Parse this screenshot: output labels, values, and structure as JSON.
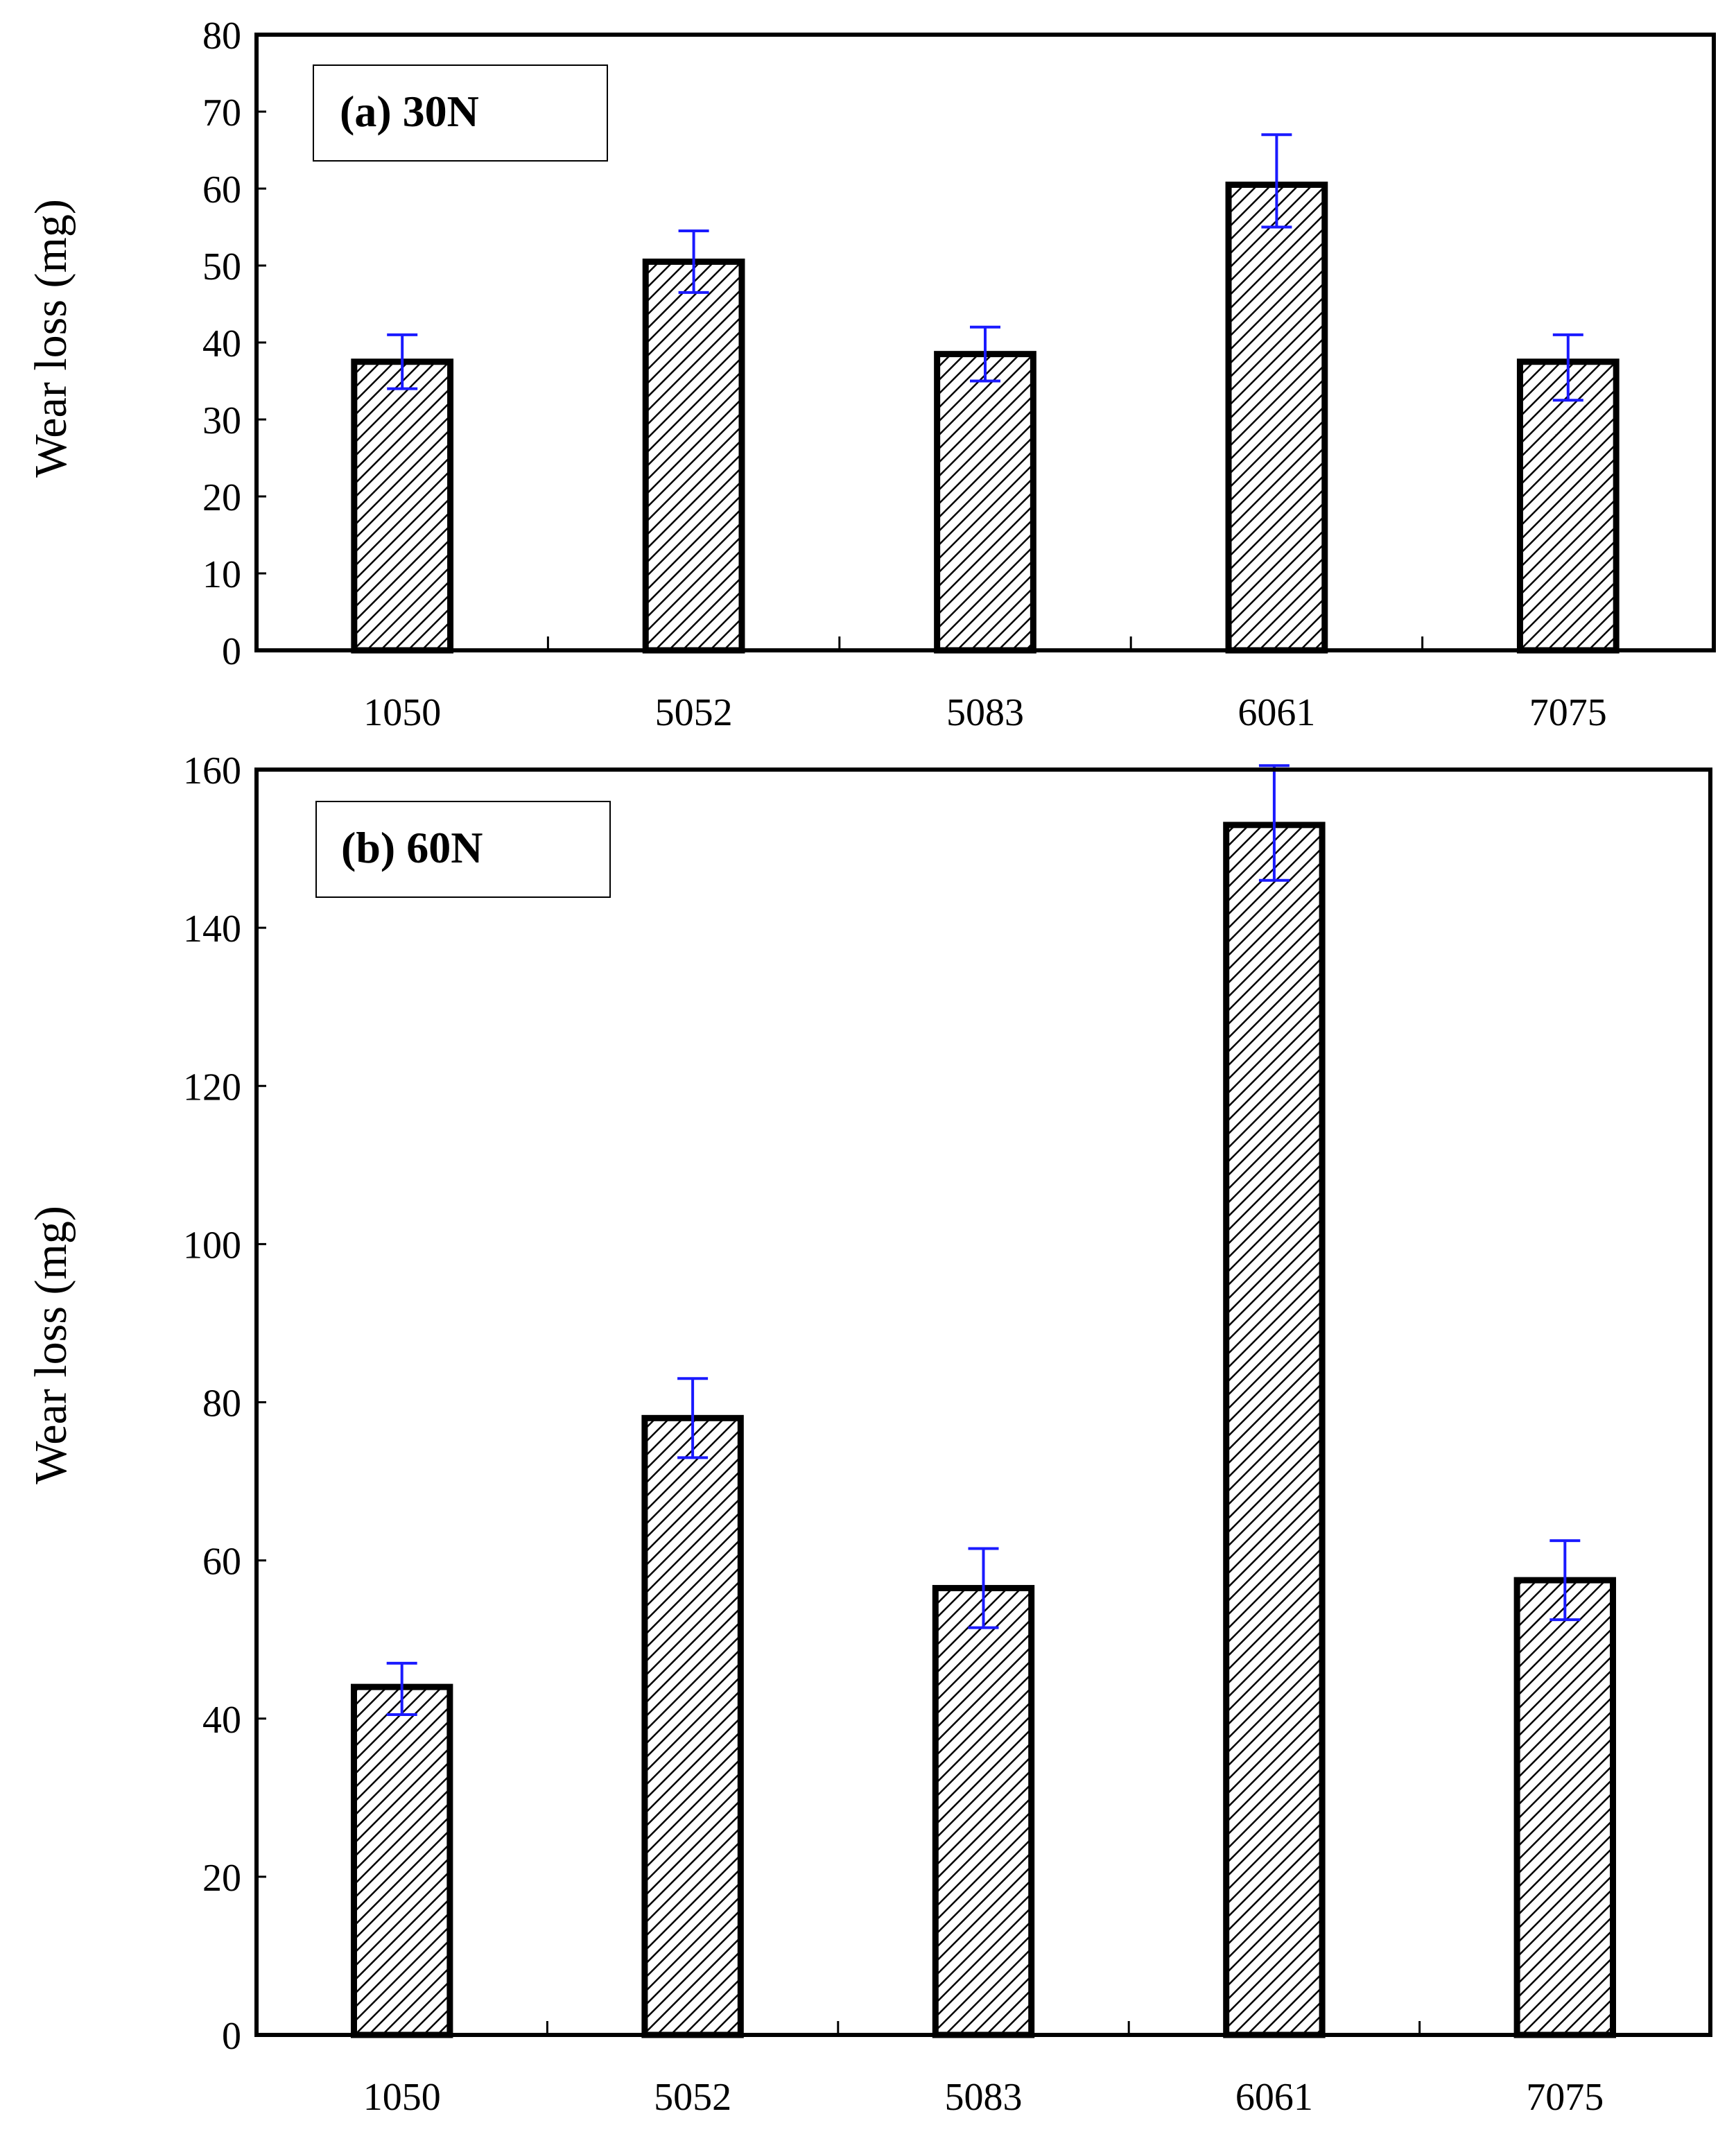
{
  "chart_data": [
    {
      "type": "bar",
      "title": "(a) 30N",
      "xlabel": "",
      "ylabel": "Wear loss  (mg)",
      "ylim": [
        0,
        80
      ],
      "yticks": [
        0,
        10,
        20,
        30,
        40,
        50,
        60,
        70,
        80
      ],
      "grid": false,
      "categories": [
        "1050",
        "5052",
        "5083",
        "6061",
        "7075"
      ],
      "values": [
        37.5,
        50.5,
        38.5,
        60.5,
        37.5
      ],
      "error_low": [
        34,
        46.5,
        35,
        55,
        32.5
      ],
      "error_high": [
        41,
        54.5,
        42,
        67,
        41
      ]
    },
    {
      "type": "bar",
      "title": "(b) 60N",
      "xlabel": "",
      "ylabel": "Wear loss  (mg)",
      "ylim": [
        0,
        160
      ],
      "yticks": [
        0,
        20,
        40,
        60,
        80,
        100,
        120,
        140,
        160
      ],
      "grid": false,
      "categories": [
        "1050",
        "5052",
        "5083",
        "6061",
        "7075"
      ],
      "values": [
        44,
        78,
        56.5,
        153,
        57.5
      ],
      "error_low": [
        40.5,
        73,
        51.5,
        146,
        52.5
      ],
      "error_high": [
        47,
        83,
        61.5,
        160.5,
        62.5
      ]
    }
  ],
  "style": {
    "bar_edge": "#000000",
    "error_bar": "#1a1aff",
    "background": "#ffffff"
  }
}
